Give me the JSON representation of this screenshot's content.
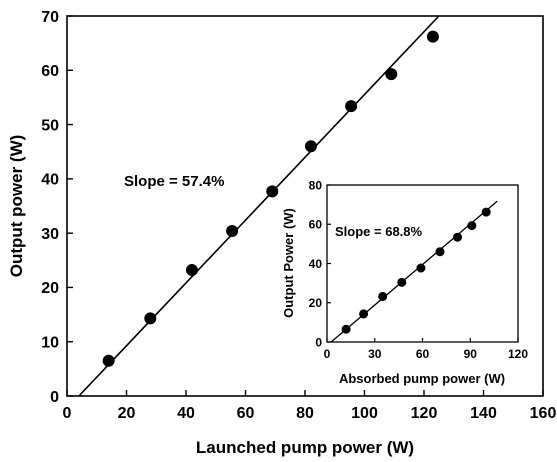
{
  "chart_data": [
    {
      "type": "scatter",
      "xlabel": "Launched pump power (W)",
      "ylabel": "Output power (W)",
      "xlim": [
        0,
        160
      ],
      "ylim": [
        0,
        70
      ],
      "xticks": [
        0,
        20,
        40,
        60,
        80,
        100,
        120,
        140,
        160
      ],
      "yticks": [
        0,
        10,
        20,
        30,
        40,
        50,
        60,
        70
      ],
      "grid": false,
      "series": [
        {
          "x": [
            14,
            28,
            42,
            55.5,
            69,
            82,
            95.5,
            109,
            123
          ],
          "y": [
            6.5,
            14.3,
            23.2,
            30.4,
            37.7,
            46,
            53.4,
            59.3,
            66.2
          ]
        }
      ],
      "fit_line": {
        "slope": 0.574,
        "x": [
          4,
          125
        ],
        "y": [
          0,
          70
        ]
      },
      "annotations": [
        {
          "text": "Slope = 57.4%"
        }
      ]
    },
    {
      "type": "scatter",
      "inset": true,
      "xlabel": "Absorbed pump power (W)",
      "ylabel": "Output Power (W)",
      "xlim": [
        0,
        120
      ],
      "ylim": [
        0,
        80
      ],
      "xticks": [
        0,
        30,
        60,
        90,
        120
      ],
      "yticks": [
        0,
        20,
        40,
        60,
        80
      ],
      "grid": false,
      "series": [
        {
          "x": [
            12,
            23,
            35,
            47,
            59,
            71,
            82,
            91,
            100
          ],
          "y": [
            6.5,
            14.3,
            23.2,
            30.4,
            37.7,
            46,
            53.4,
            59.3,
            66.2
          ]
        }
      ],
      "fit_line": {
        "slope": 0.688,
        "x": [
          2.6,
          107
        ],
        "y": [
          0,
          71.8
        ]
      },
      "annotations": [
        {
          "text": "Slope = 68.8%"
        }
      ]
    }
  ]
}
